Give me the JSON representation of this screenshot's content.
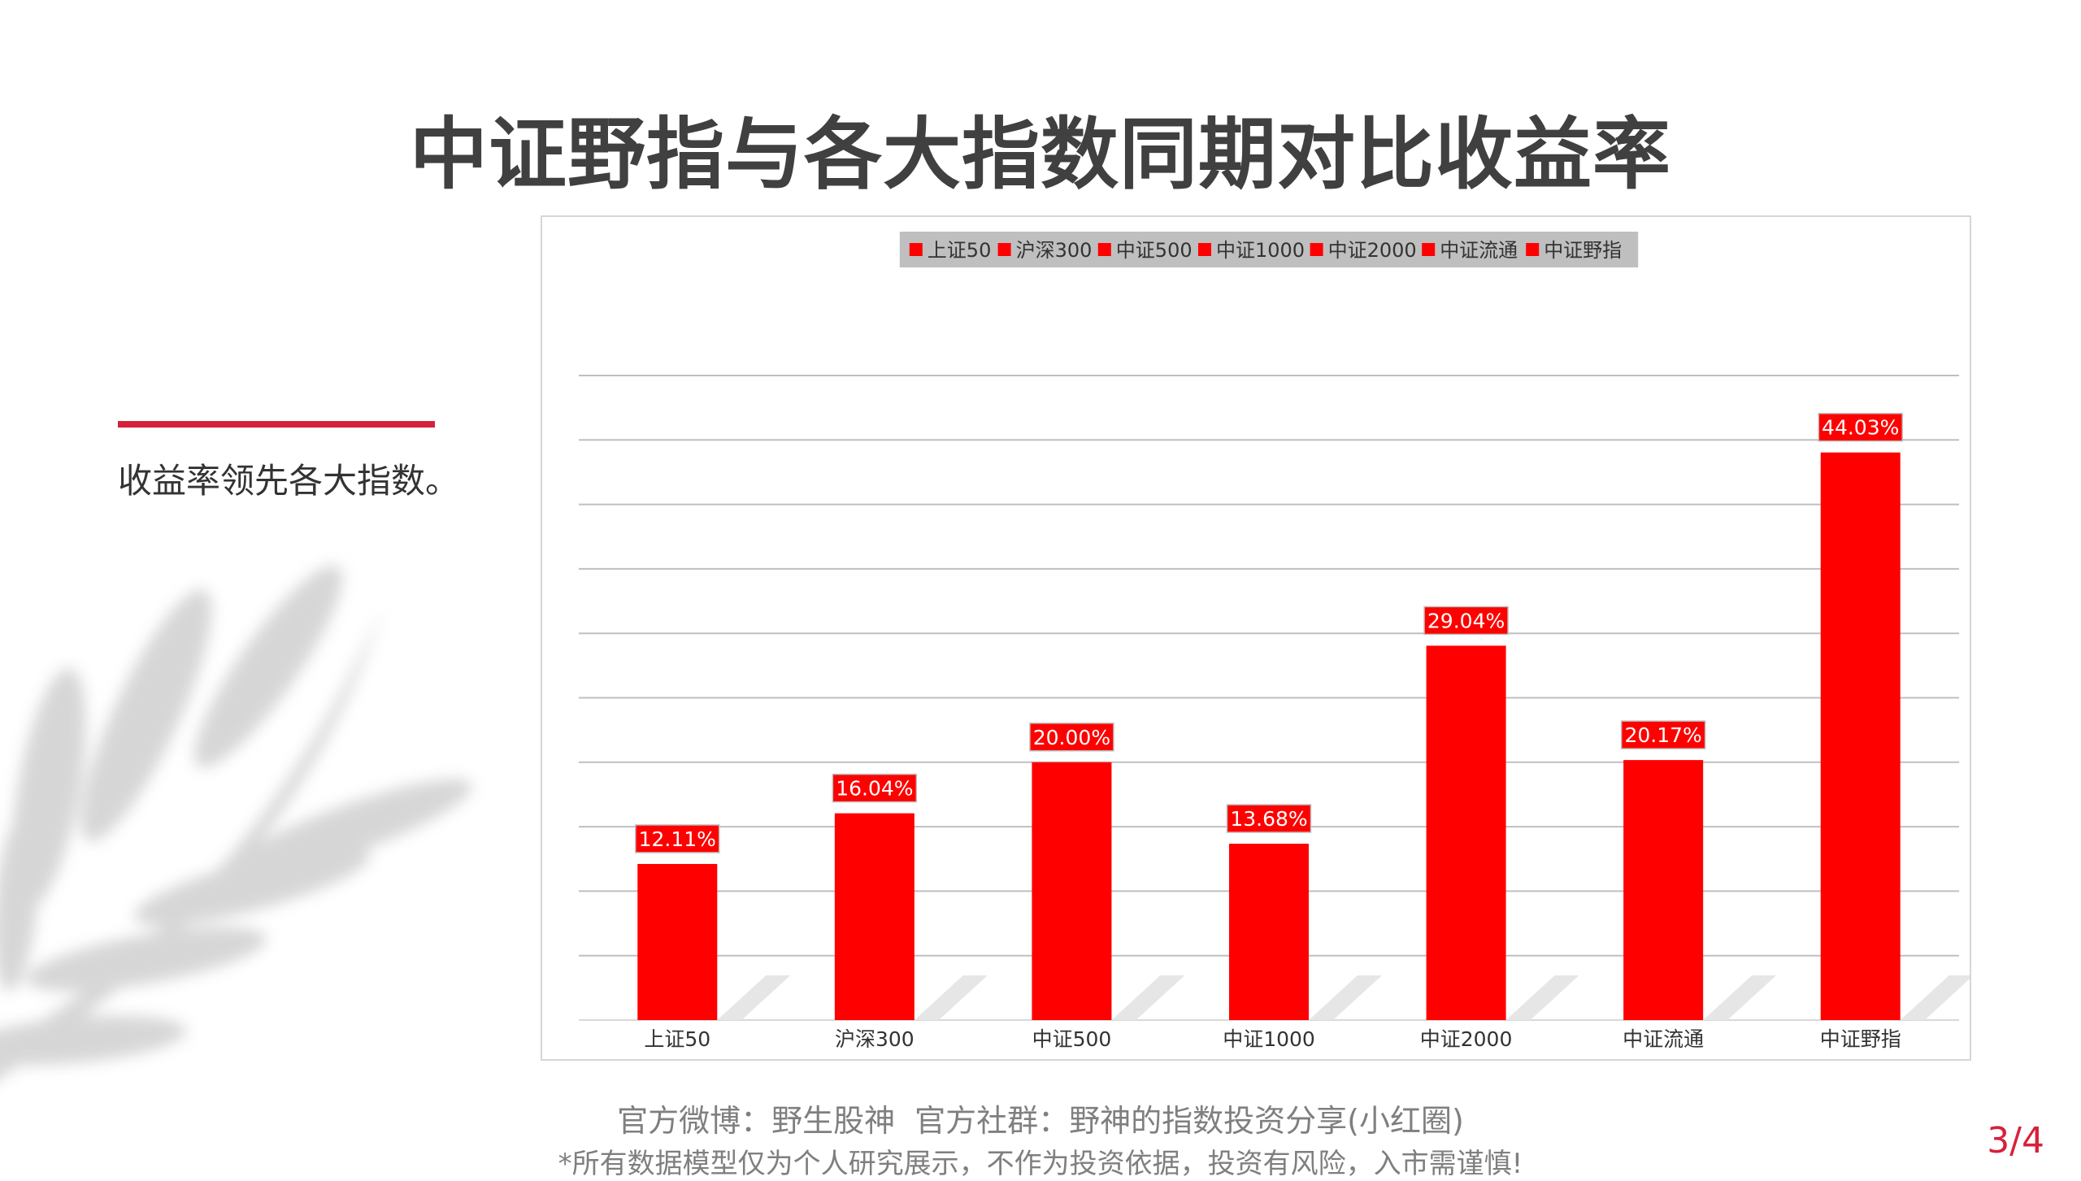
{
  "slide": {
    "title": "中证野指与各大指数同期对比收益率",
    "subtitle": "收益率领先各大指数。",
    "footer_line1_left": "官方微博：野生股神",
    "footer_line1_right": "官方社群：野神的指数投资分享(小红圈)",
    "footer_line2": "*所有数据模型仅为个人研究展示，不作为投资依据，投资有风险，入市需谨慎!",
    "page_number": "3/4"
  },
  "colors": {
    "bar": "#ff0000",
    "accent": "#d6213a",
    "legend_bg": "#bfbfbf",
    "grid": "#bfbfbf"
  },
  "chart_data": {
    "type": "bar",
    "title": "",
    "categories": [
      "上证50",
      "沪深300",
      "中证500",
      "中证1000",
      "中证2000",
      "中证流通",
      "中证野指"
    ],
    "values": [
      12.11,
      16.04,
      20.0,
      13.68,
      29.04,
      20.17,
      44.03
    ],
    "data_labels": [
      "12.11%",
      "16.04%",
      "20.00%",
      "13.68%",
      "29.04%",
      "20.17%",
      "44.03%"
    ],
    "legend": [
      "上证50",
      "沪深300",
      "中证500",
      "中证1000",
      "中证2000",
      "中证流通",
      "中证野指"
    ],
    "legend_position": "top",
    "xlabel": "",
    "ylabel": "",
    "ylim": [
      0,
      50
    ],
    "gridlines": 10,
    "y_axis_labels_shown": false
  }
}
